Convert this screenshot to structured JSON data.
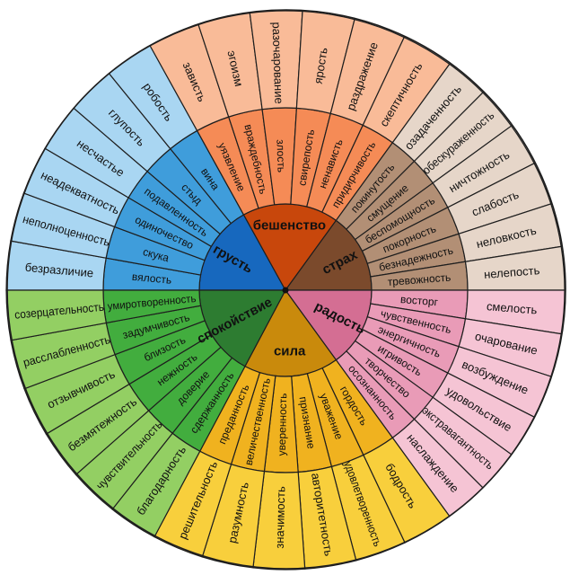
{
  "wheel": {
    "sectors": [
      {
        "core": "грусть",
        "colors": {
          "core": "#1768be",
          "middle": "#3f9ddb",
          "outer": "#a9d6f2"
        },
        "middle": [
          "вялость",
          "скука",
          "одиночество",
          "подавленность",
          "стыд",
          "вина"
        ],
        "outer": [
          "безразличие",
          "неполноценность",
          "неадекватность",
          "несчастье",
          "глупость",
          "робость"
        ]
      },
      {
        "core": "бешенство",
        "colors": {
          "core": "#c8470c",
          "middle": "#f58b56",
          "outer": "#f9bb98"
        },
        "middle": [
          "уязвление",
          "враждебность",
          "злость",
          "свирепость",
          "ненависть",
          "придирчивость"
        ],
        "outer": [
          "зависть",
          "эгоизм",
          "разочарование",
          "ярость",
          "раздражение",
          "скептичность"
        ]
      },
      {
        "core": "страх",
        "colors": {
          "core": "#7b4a2c",
          "middle": "#b28f75",
          "outer": "#e6d6c9"
        },
        "middle": [
          "покинутость",
          "смущение",
          "беспомощность",
          "покорность",
          "безнадежность",
          "тревожность"
        ],
        "outer": [
          "озадаченность",
          "обескураженность",
          "ничтожность",
          "слабость",
          "неловкость",
          "нелепость"
        ]
      },
      {
        "core": "радость",
        "colors": {
          "core": "#d46e93",
          "middle": "#e99bb7",
          "outer": "#f5c4d4"
        },
        "middle": [
          "восторг",
          "чувственность",
          "энергичность",
          "игривость",
          "творчество",
          "осознанность"
        ],
        "outer": [
          "смелость",
          "очарование",
          "возбуждение",
          "удовольствие",
          "экстравагантность",
          "наслаждение"
        ]
      },
      {
        "core": "сила",
        "colors": {
          "core": "#c98a0c",
          "middle": "#f0b21f",
          "outer": "#f8cf3c"
        },
        "middle": [
          "гордость",
          "уважение",
          "признание",
          "уверенность",
          "величественность",
          "преданность"
        ],
        "outer": [
          "бодрость",
          "удовлетворенность",
          "авторитетность",
          "значимость",
          "разумность",
          "решительность"
        ]
      },
      {
        "core": "спокойствие",
        "colors": {
          "core": "#2d7c31",
          "middle": "#42ad3e",
          "outer": "#93cf63"
        },
        "middle": [
          "сдержанность",
          "доверие",
          "нежность",
          "близость",
          "задумчивость",
          "умиротворенность"
        ],
        "outer": [
          "благодарность",
          "чувствительность",
          "безмятежность",
          "отзывчивость",
          "расслабленность",
          "созерцательность"
        ]
      }
    ]
  }
}
